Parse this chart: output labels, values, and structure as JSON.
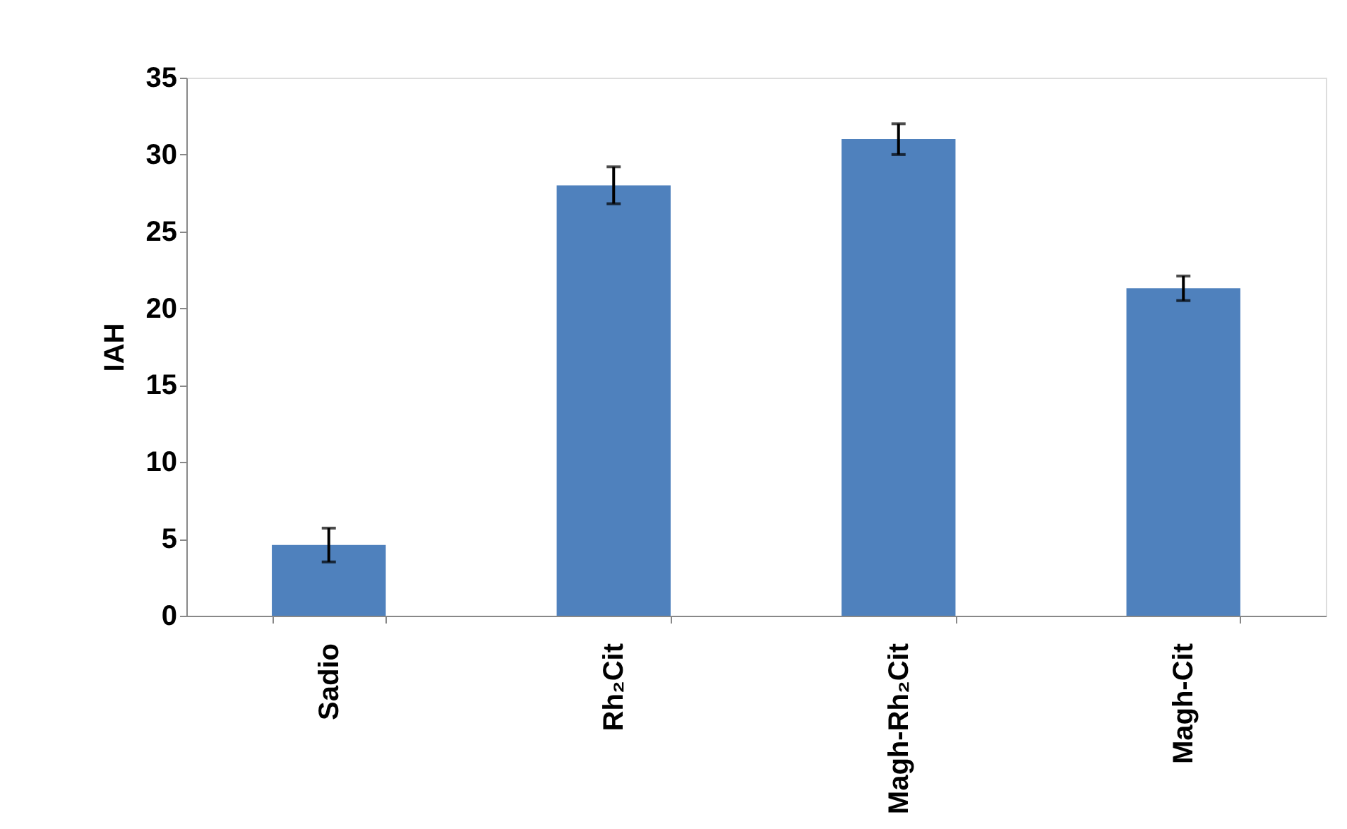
{
  "chart_data": {
    "type": "bar",
    "ylabel": "IAH",
    "categories": [
      "Sadio",
      "Rh₂Cit",
      "Magh-Rh₂Cit",
      "Magh-Cit"
    ],
    "values": [
      4.6,
      28.0,
      31.0,
      21.3
    ],
    "errors": [
      1.1,
      1.2,
      1.0,
      0.8
    ],
    "color": "#4f81bd",
    "ylim": [
      0,
      35
    ],
    "yticks": [
      0,
      5,
      10,
      15,
      20,
      25,
      30,
      35
    ],
    "grid": false
  }
}
